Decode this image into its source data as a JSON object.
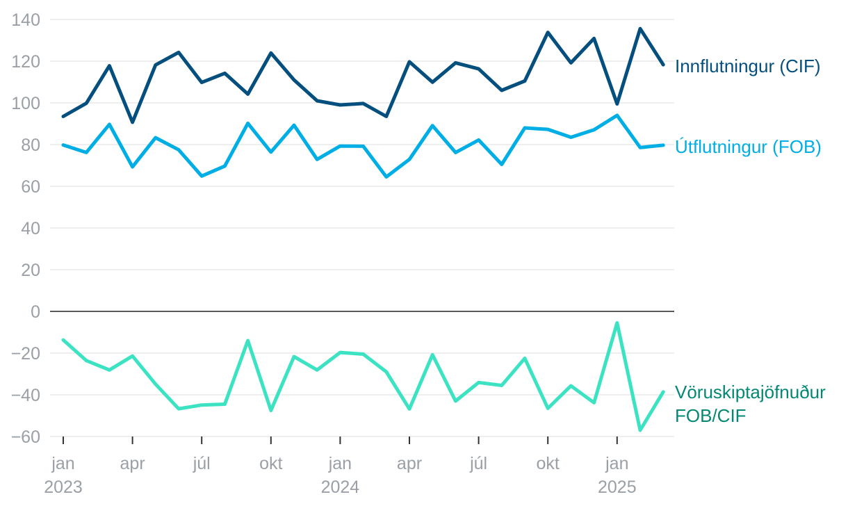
{
  "chart_data": {
    "type": "line",
    "x": [
      "2023-01",
      "2023-02",
      "2023-03",
      "2023-04",
      "2023-05",
      "2023-06",
      "2023-07",
      "2023-08",
      "2023-09",
      "2023-10",
      "2023-11",
      "2023-12",
      "2024-01",
      "2024-02",
      "2024-03",
      "2024-04",
      "2024-05",
      "2024-06",
      "2024-07",
      "2024-08",
      "2024-09",
      "2024-10",
      "2024-11",
      "2024-12",
      "2025-01",
      "2025-02",
      "2025-03"
    ],
    "series": [
      {
        "name": "Innflutningur (CIF)",
        "color": "#044f7e",
        "values": [
          93.5,
          99.8,
          117.8,
          90.7,
          118.2,
          124.2,
          109.8,
          114.2,
          104.2,
          123.9,
          111.0,
          101.0,
          99.0,
          99.7,
          93.5,
          119.7,
          109.9,
          119.2,
          116.3,
          106.0,
          110.5,
          133.8,
          119.2,
          130.9,
          99.5,
          135.6,
          118.3
        ]
      },
      {
        "name": "Útflutningur (FOB)",
        "color": "#00aee6",
        "values": [
          79.8,
          76.2,
          89.7,
          69.3,
          83.3,
          77.5,
          64.9,
          69.7,
          90.2,
          76.4,
          89.3,
          72.9,
          79.3,
          79.2,
          64.5,
          72.9,
          89.1,
          76.2,
          82.2,
          70.5,
          88.0,
          87.3,
          83.5,
          87.1,
          94.0,
          78.6,
          79.7
        ]
      },
      {
        "name": "Vöruskiptajöfnuður FOB/CIF",
        "color": "#3ce3c3",
        "label_color": "#048874",
        "label_lines": [
          "Vöruskiptajöfnuður",
          "FOB/CIF"
        ],
        "values": [
          -13.7,
          -23.6,
          -28.1,
          -21.4,
          -34.9,
          -46.7,
          -44.9,
          -44.5,
          -14.0,
          -47.5,
          -21.7,
          -28.1,
          -19.7,
          -20.5,
          -29.0,
          -46.8,
          -20.8,
          -43.0,
          -34.1,
          -35.5,
          -22.5,
          -46.5,
          -35.7,
          -43.8,
          -5.5,
          -57.0,
          -38.6
        ]
      }
    ],
    "y_ticks": [
      "140",
      "120",
      "100",
      "80",
      "60",
      "40",
      "20",
      "0",
      "−20",
      "−40",
      "−60"
    ],
    "y_tick_values": [
      140,
      120,
      100,
      80,
      60,
      40,
      20,
      0,
      -20,
      -40,
      -60
    ],
    "ylim": [
      -60,
      140
    ],
    "x_ticks": [
      {
        "label": "jan",
        "sub": "2023",
        "index": 0
      },
      {
        "label": "apr",
        "sub": "",
        "index": 3
      },
      {
        "label": "júl",
        "sub": "",
        "index": 6
      },
      {
        "label": "okt",
        "sub": "",
        "index": 9
      },
      {
        "label": "jan",
        "sub": "2024",
        "index": 12
      },
      {
        "label": "apr",
        "sub": "",
        "index": 15
      },
      {
        "label": "júl",
        "sub": "",
        "index": 18
      },
      {
        "label": "okt",
        "sub": "",
        "index": 21
      },
      {
        "label": "jan",
        "sub": "2025",
        "index": 24
      }
    ],
    "grid": true,
    "legend": "right, at line ends"
  }
}
